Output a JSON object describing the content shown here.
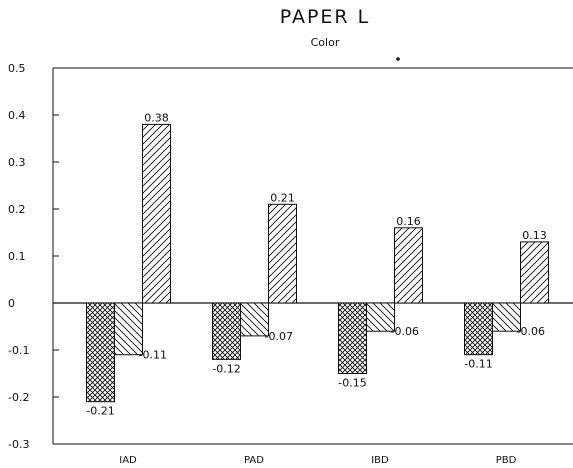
{
  "chart_data": {
    "type": "bar",
    "title": "PAPER L",
    "subtitle": "Color",
    "xlabel": "",
    "ylabel": "",
    "ylim": [
      -0.3,
      0.5
    ],
    "yticks": [
      "0.5",
      "0.4",
      "0.3",
      "0.2",
      "0.1",
      "0",
      "-0.1",
      "-0.2",
      "-0.3"
    ],
    "categories": [
      "IAD",
      "PAD",
      "IBD",
      "PBD"
    ],
    "series": [
      {
        "pattern": "crosshatch",
        "values": [
          -0.21,
          -0.12,
          -0.15,
          -0.11
        ],
        "labels": [
          "-0.21",
          "-0.12",
          "-0.15",
          "-0.11"
        ]
      },
      {
        "pattern": "diagonal-left",
        "values": [
          -0.11,
          -0.07,
          -0.06,
          -0.06
        ],
        "labels": [
          "-0.11",
          "-0.07",
          "-0.06",
          "-0.06"
        ]
      },
      {
        "pattern": "diagonal-right",
        "values": [
          0.38,
          0.21,
          0.16,
          0.13
        ],
        "labels": [
          "0.38",
          "0.21",
          "0.16",
          "0.13"
        ]
      }
    ],
    "grid": false,
    "legend": "none"
  }
}
